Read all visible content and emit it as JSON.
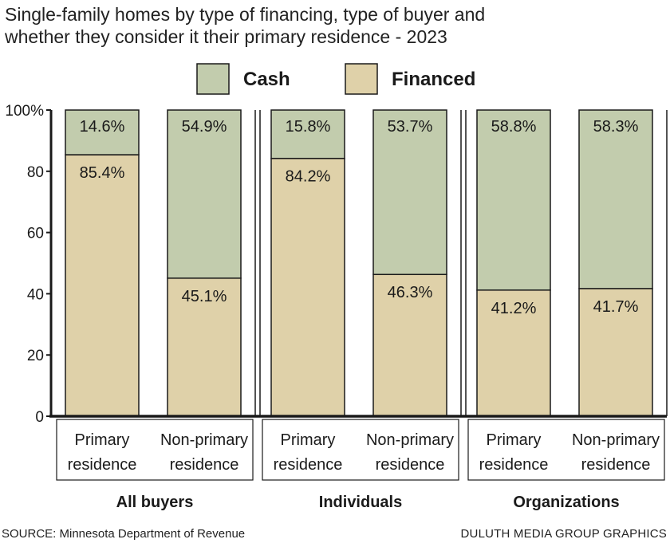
{
  "title_lines": [
    "Single-family homes by type of financing, type of buyer and",
    "whether they consider it their primary residence - 2023"
  ],
  "legend": {
    "cash": "Cash",
    "financed": "Financed"
  },
  "colors": {
    "cash": "#c2ccad",
    "financed": "#dfd1a9",
    "frame": "#1a1a1a"
  },
  "y_ticks": [
    "100%",
    "80",
    "60",
    "40",
    "20",
    "0"
  ],
  "chart_data": {
    "type": "bar",
    "stacked": true,
    "ylim": [
      0,
      100
    ],
    "groups": [
      {
        "name": "All buyers",
        "categories": [
          {
            "label": [
              "Primary",
              "residence"
            ],
            "financed": 85.4,
            "cash": 14.6,
            "financed_label": "85.4%",
            "cash_label": "14.6%"
          },
          {
            "label": [
              "Non-primary",
              "residence"
            ],
            "financed": 45.1,
            "cash": 54.9,
            "financed_label": "45.1%",
            "cash_label": "54.9%"
          }
        ]
      },
      {
        "name": "Individuals",
        "categories": [
          {
            "label": [
              "Primary",
              "residence"
            ],
            "financed": 84.2,
            "cash": 15.8,
            "financed_label": "84.2%",
            "cash_label": "15.8%"
          },
          {
            "label": [
              "Non-primary",
              "residence"
            ],
            "financed": 46.3,
            "cash": 53.7,
            "financed_label": "46.3%",
            "cash_label": "53.7%"
          }
        ]
      },
      {
        "name": "Organizations",
        "categories": [
          {
            "label": [
              "Primary",
              "residence"
            ],
            "financed": 41.2,
            "cash": 58.8,
            "financed_label": "41.2%",
            "cash_label": "58.8%"
          },
          {
            "label": [
              "Non-primary",
              "residence"
            ],
            "financed": 41.7,
            "cash": 58.3,
            "financed_label": "41.7%",
            "cash_label": "58.3%"
          }
        ]
      }
    ]
  },
  "source": "SOURCE: Minnesota Department of Revenue",
  "credit": "DULUTH MEDIA GROUP GRAPHICS"
}
